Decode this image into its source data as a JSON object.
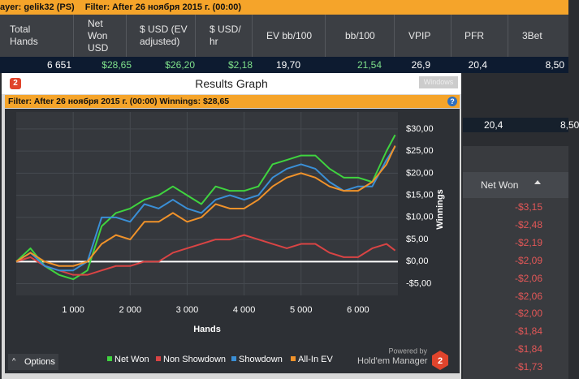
{
  "top_bar": {
    "player": "ayer: gelik32 (PS)",
    "filter": "Filter: After 26 ноября 2015 г. (00:00)"
  },
  "stats_table": {
    "columns": [
      "Total Hands",
      "Net Won USD",
      "$ USD (EV adjusted)",
      "$ USD/ hr",
      "EV bb/100",
      "bb/100",
      "VPIP",
      "PFR",
      "3Bet"
    ],
    "row": [
      "6 651",
      "$28,65",
      "$26,20",
      "$2,18",
      "19,70",
      "21,54",
      "26,9",
      "20,4",
      "8,50"
    ]
  },
  "behind_row": [
    "20,4",
    "8,50"
  ],
  "side_table": {
    "header": "Net Won",
    "values": [
      "-$3,15",
      "-$2,48",
      "-$2,19",
      "-$2,09",
      "-$2,06",
      "-$2,06",
      "-$2,00",
      "-$1,84",
      "-$1,84",
      "-$1,73"
    ]
  },
  "window": {
    "title": "Results Graph",
    "button": "Windows",
    "filter": "Filter: After 26 ноября 2015 г. (00:00)  Winnings: $28,65",
    "options": "Options",
    "powered_by": "Powered by",
    "brand": "Hold'em Manager"
  },
  "chart_data": {
    "type": "line",
    "x_label": "Hands",
    "y_label": "Winnings",
    "x": [
      0,
      250,
      500,
      750,
      1000,
      1250,
      1500,
      1750,
      2000,
      2250,
      2500,
      2750,
      3000,
      3250,
      3500,
      3750,
      4000,
      4250,
      4500,
      4750,
      5000,
      5250,
      5500,
      5750,
      6000,
      6250,
      6500,
      6651
    ],
    "series": [
      {
        "name": "Net Won",
        "color": "#3fd43f",
        "values": [
          0,
          3,
          -1,
          -3,
          -4,
          -2,
          8,
          11,
          12,
          14,
          15,
          17,
          15,
          13,
          17,
          16,
          16,
          17,
          22,
          23,
          24,
          24,
          21,
          19,
          19,
          18,
          25,
          28.65
        ]
      },
      {
        "name": "Non Showdown",
        "color": "#d94444",
        "values": [
          0,
          1,
          -1,
          -2,
          -3,
          -3,
          -2,
          -1,
          -1,
          0,
          0,
          2,
          3,
          4,
          5,
          5,
          6,
          5,
          4,
          3,
          4,
          4,
          2,
          1,
          1,
          3,
          4,
          2.5
        ]
      },
      {
        "name": "Showdown",
        "color": "#3a8fd6",
        "values": [
          0,
          2,
          -1,
          -2,
          -2,
          0,
          10,
          10,
          9,
          13,
          12,
          14,
          12,
          11,
          14,
          15,
          14,
          15,
          19,
          21,
          22,
          21,
          18,
          16,
          17,
          17,
          23,
          26
        ]
      },
      {
        "name": "All-In EV",
        "color": "#f0922a",
        "values": [
          0,
          2,
          0,
          -1,
          -1,
          0,
          4,
          6,
          5,
          9,
          9,
          11,
          9,
          10,
          13,
          12,
          12,
          14,
          17,
          19,
          20,
          19,
          17,
          16,
          16,
          18,
          22,
          26.2
        ]
      }
    ],
    "xlim": [
      0,
      6700
    ],
    "xticks": [
      {
        "value": 1000,
        "label": "1 000"
      },
      {
        "value": 2000,
        "label": "2 000"
      },
      {
        "value": 3000,
        "label": "3 000"
      },
      {
        "value": 4000,
        "label": "4 000"
      },
      {
        "value": 5000,
        "label": "5 000"
      },
      {
        "value": 6000,
        "label": "6 000"
      }
    ],
    "ylim": [
      -6,
      32
    ],
    "yticks": [
      {
        "value": 30,
        "label": "$30,00"
      },
      {
        "value": 25,
        "label": "$25,00"
      },
      {
        "value": 20,
        "label": "$20,00"
      },
      {
        "value": 15,
        "label": "$15,00"
      },
      {
        "value": 10,
        "label": "$10,00"
      },
      {
        "value": 5,
        "label": "$5,00"
      },
      {
        "value": 0,
        "label": "$0,00"
      },
      {
        "value": -5,
        "label": "-$5,00"
      }
    ],
    "grid": true
  }
}
